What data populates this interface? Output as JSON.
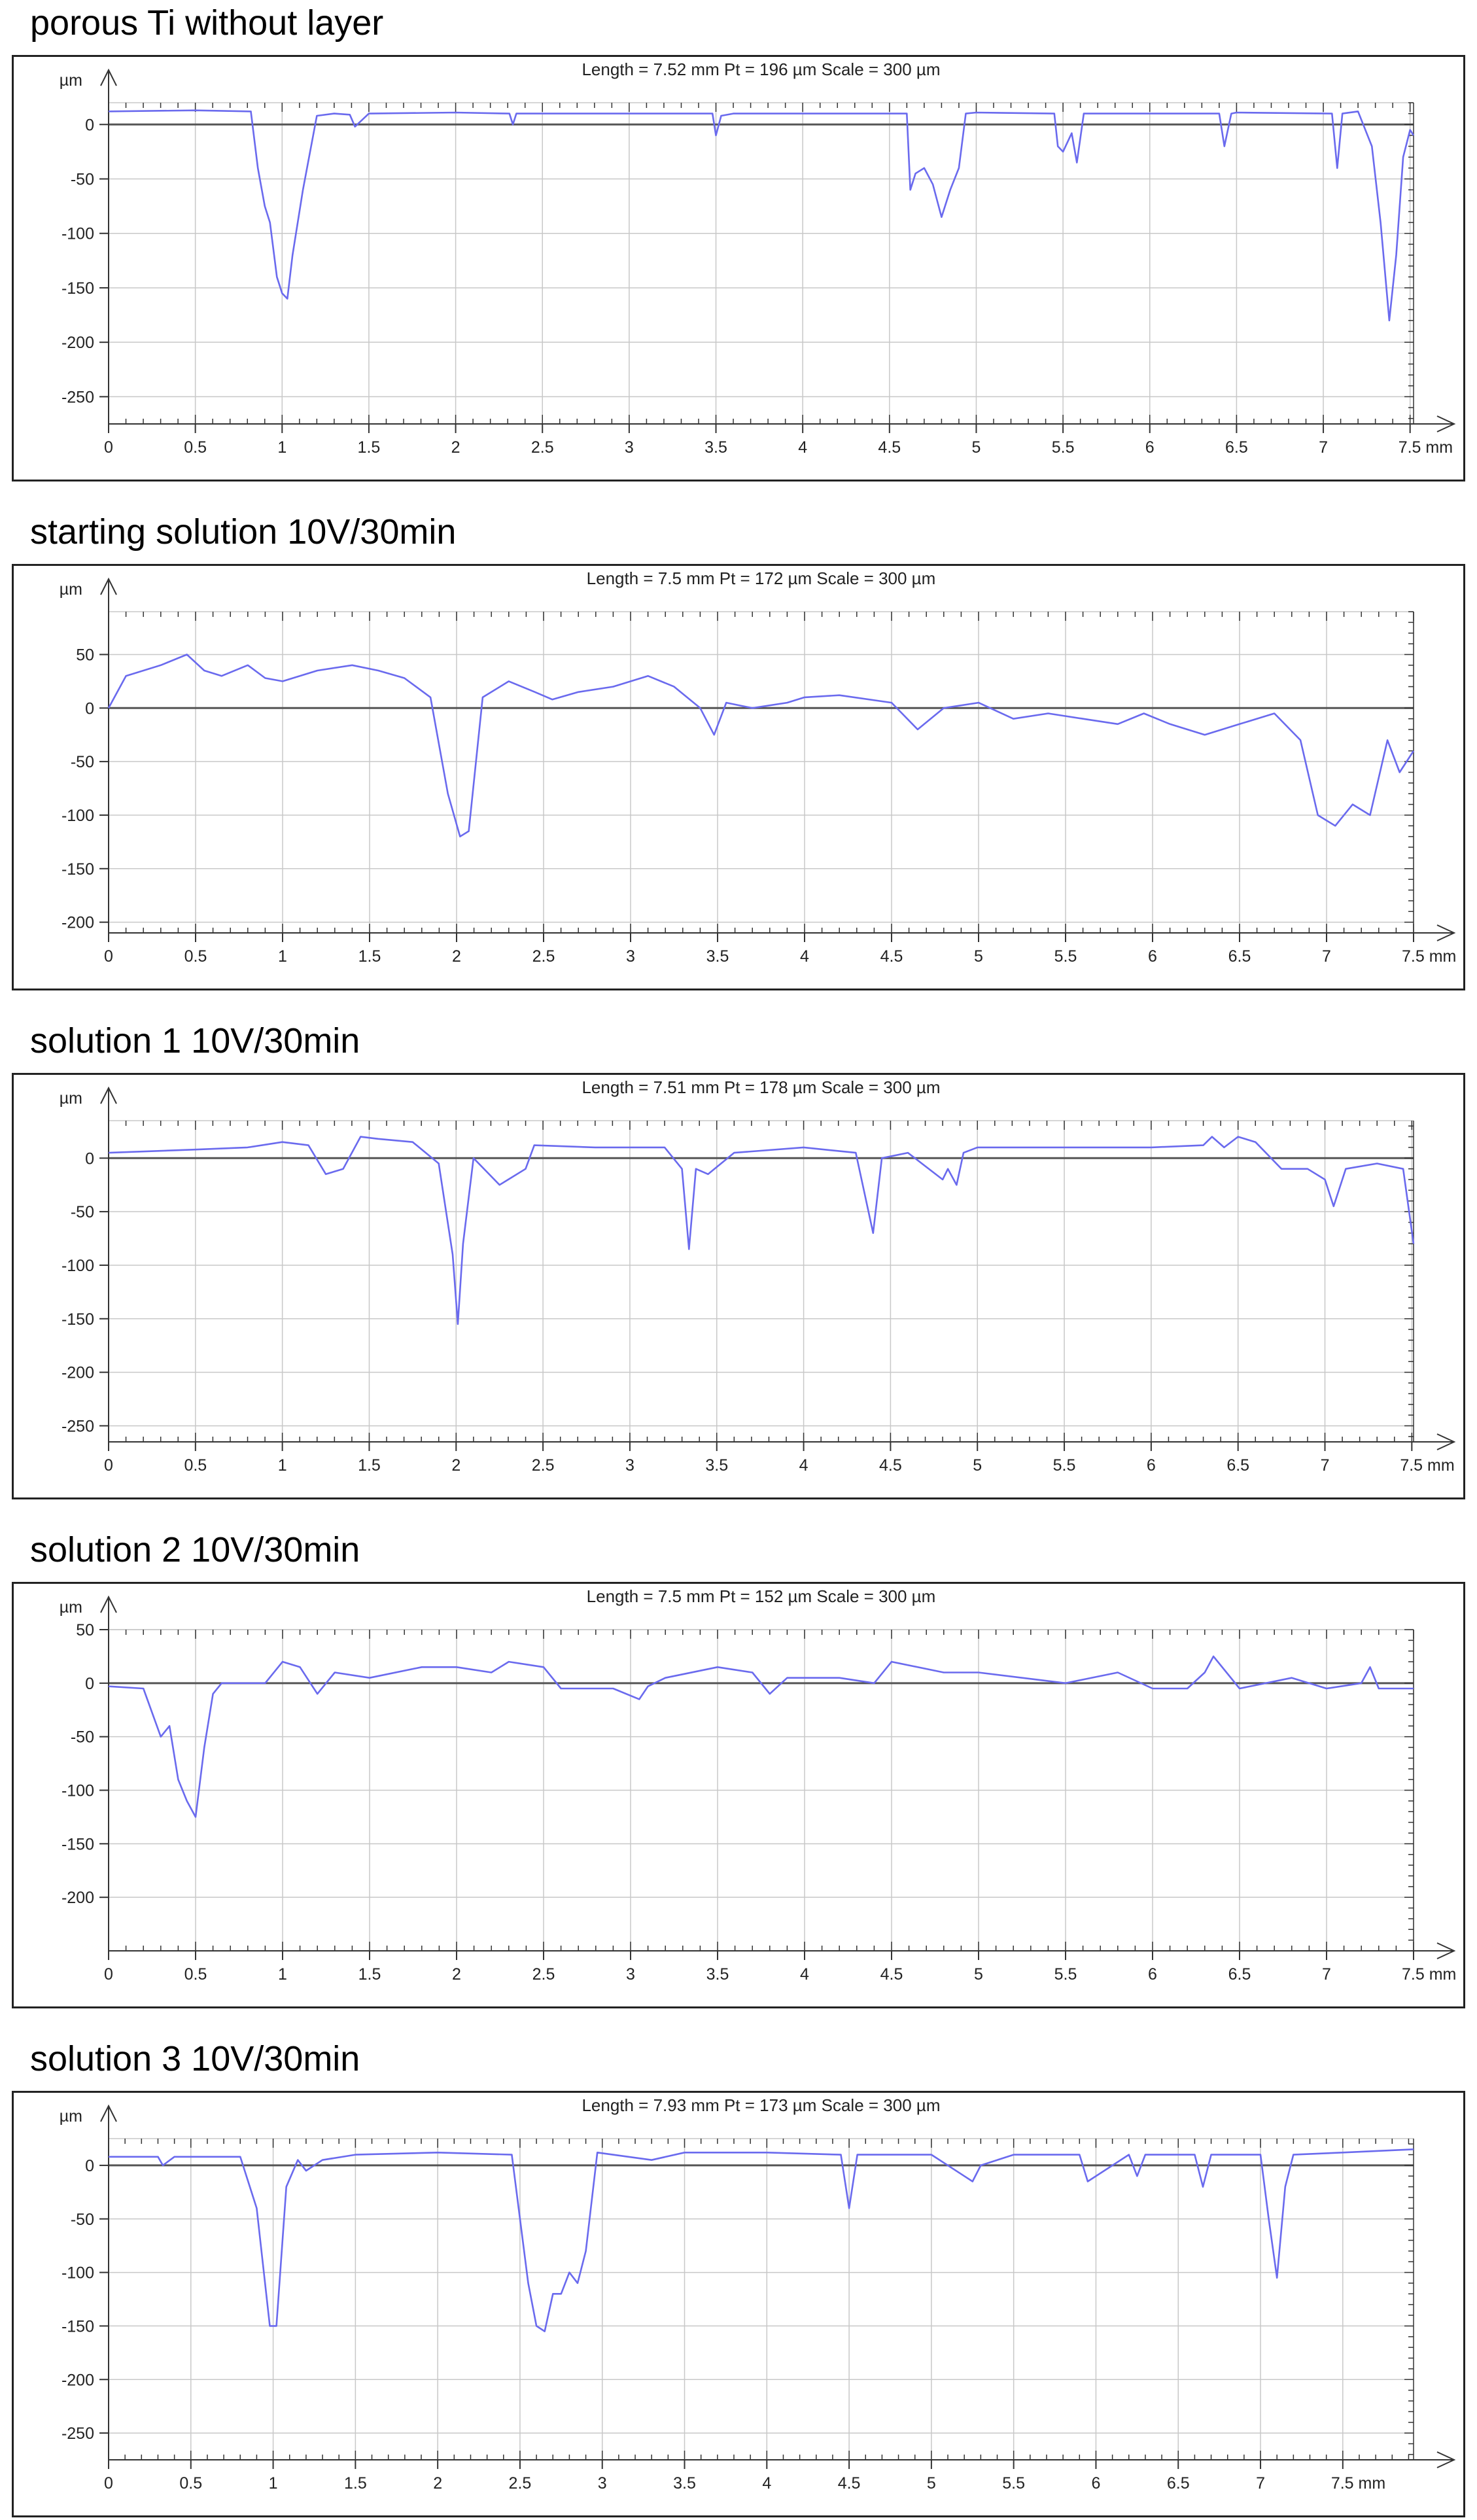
{
  "figure": {
    "x_unit": "mm",
    "y_unit": "µm",
    "line_color": "#6a6aee",
    "grid_color": "#c8c8c8",
    "zero_line_color": "#555555"
  },
  "chart_data": [
    {
      "type": "line",
      "title": "porous Ti without layer",
      "info": "Length = 7.52 mm  Pt = 196 µm  Scale = 300 µm",
      "ylabel": "µm",
      "xlabel": "mm",
      "xlim": [
        0,
        7.52
      ],
      "ylim": [
        -275,
        20
      ],
      "xticks": [
        0,
        0.5,
        1,
        1.5,
        2,
        2.5,
        3,
        3.5,
        4,
        4.5,
        5,
        5.5,
        6,
        6.5,
        7,
        7.5
      ],
      "xtick_labels": [
        "0",
        "0.5",
        "1",
        "1.5",
        "2",
        "2.5",
        "3",
        "3.5",
        "4",
        "4.5",
        "5",
        "5.5",
        "6",
        "6.5",
        "7",
        "7.5 mm"
      ],
      "yticks": [
        0,
        -50,
        -100,
        -150,
        -200,
        -250
      ],
      "ytick_labels": [
        "0",
        "-50",
        "-100",
        "-150",
        "-200",
        "-250"
      ],
      "grid": true,
      "x": [
        0,
        0.5,
        0.82,
        0.86,
        0.9,
        0.93,
        0.97,
        1.0,
        1.03,
        1.06,
        1.12,
        1.2,
        1.3,
        1.39,
        1.42,
        1.5,
        2.0,
        2.31,
        2.33,
        2.35,
        2.5,
        3.48,
        3.5,
        3.53,
        3.6,
        4.6,
        4.62,
        4.65,
        4.7,
        4.75,
        4.8,
        4.85,
        4.9,
        4.94,
        5.0,
        5.45,
        5.47,
        5.5,
        5.55,
        5.58,
        5.62,
        6.4,
        6.43,
        6.47,
        6.5,
        7.05,
        7.08,
        7.11,
        7.2,
        7.28,
        7.33,
        7.38,
        7.42,
        7.46,
        7.5,
        7.52
      ],
      "y": [
        12,
        13,
        12,
        -40,
        -75,
        -90,
        -140,
        -155,
        -160,
        -120,
        -60,
        8,
        10,
        9,
        -2,
        10,
        11,
        10,
        0,
        10,
        10,
        10,
        -10,
        8,
        10,
        10,
        -60,
        -45,
        -40,
        -55,
        -85,
        -60,
        -40,
        10,
        11,
        10,
        -20,
        -25,
        -8,
        -35,
        10,
        10,
        -20,
        10,
        11,
        10,
        -40,
        10,
        12,
        -20,
        -90,
        -180,
        -120,
        -30,
        -5,
        -10
      ]
    },
    {
      "type": "line",
      "title": "starting solution 10V/30min",
      "info": "Length = 7.5 mm  Pt = 172 µm  Scale = 300 µm",
      "ylabel": "µm",
      "xlabel": "mm",
      "xlim": [
        0,
        7.5
      ],
      "ylim": [
        -210,
        90
      ],
      "xticks": [
        0,
        0.5,
        1,
        1.5,
        2,
        2.5,
        3,
        3.5,
        4,
        4.5,
        5,
        5.5,
        6,
        6.5,
        7,
        7.5
      ],
      "xtick_labels": [
        "0",
        "0.5",
        "1",
        "1.5",
        "2",
        "2.5",
        "3",
        "3.5",
        "4",
        "4.5",
        "5",
        "5.5",
        "6",
        "6.5",
        "7",
        "7.5 mm"
      ],
      "yticks": [
        50,
        0,
        -50,
        -100,
        -150,
        -200
      ],
      "ytick_labels": [
        "50",
        "0",
        "-50",
        "-100",
        "-150",
        "-200"
      ],
      "grid": true,
      "x": [
        0,
        0.1,
        0.3,
        0.45,
        0.55,
        0.65,
        0.8,
        0.9,
        1.0,
        1.2,
        1.4,
        1.55,
        1.7,
        1.85,
        1.95,
        2.02,
        2.07,
        2.15,
        2.3,
        2.45,
        2.55,
        2.7,
        2.9,
        3.1,
        3.25,
        3.4,
        3.48,
        3.55,
        3.7,
        3.9,
        4.0,
        4.2,
        4.5,
        4.65,
        4.8,
        5.0,
        5.2,
        5.4,
        5.6,
        5.8,
        5.95,
        6.1,
        6.3,
        6.5,
        6.7,
        6.85,
        6.95,
        7.05,
        7.15,
        7.25,
        7.35,
        7.42,
        7.5
      ],
      "y": [
        0,
        30,
        40,
        50,
        35,
        30,
        40,
        28,
        25,
        35,
        40,
        35,
        28,
        10,
        -80,
        -120,
        -115,
        10,
        25,
        15,
        8,
        15,
        20,
        30,
        20,
        0,
        -25,
        5,
        0,
        5,
        10,
        12,
        5,
        -20,
        0,
        5,
        -10,
        -5,
        -10,
        -15,
        -5,
        -15,
        -25,
        -15,
        -5,
        -30,
        -100,
        -110,
        -90,
        -100,
        -30,
        -60,
        -40
      ]
    },
    {
      "type": "line",
      "title": "solution 1 10V/30min",
      "info": "Length = 7.51 mm  Pt = 178 µm  Scale = 300 µm",
      "ylabel": "µm",
      "xlabel": "mm",
      "xlim": [
        0,
        7.51
      ],
      "ylim": [
        -265,
        35
      ],
      "xticks": [
        0,
        0.5,
        1,
        1.5,
        2,
        2.5,
        3,
        3.5,
        4,
        4.5,
        5,
        5.5,
        6,
        6.5,
        7,
        7.5
      ],
      "xtick_labels": [
        "0",
        "0.5",
        "1",
        "1.5",
        "2",
        "2.5",
        "3",
        "3.5",
        "4",
        "4.5",
        "5",
        "5.5",
        "6",
        "6.5",
        "7",
        "7.5 mm"
      ],
      "yticks": [
        0,
        -50,
        -100,
        -150,
        -200,
        -250
      ],
      "ytick_labels": [
        "0",
        "-50",
        "-100",
        "-150",
        "-200",
        "-250"
      ],
      "grid": true,
      "x": [
        0,
        0.5,
        0.8,
        1.0,
        1.15,
        1.25,
        1.35,
        1.45,
        1.55,
        1.75,
        1.9,
        1.98,
        2.01,
        2.04,
        2.1,
        2.25,
        2.3,
        2.4,
        2.45,
        2.8,
        3.2,
        3.3,
        3.34,
        3.38,
        3.45,
        3.6,
        4.0,
        4.3,
        4.4,
        4.45,
        4.6,
        4.8,
        4.83,
        4.88,
        4.92,
        5.0,
        5.5,
        6.0,
        6.3,
        6.35,
        6.42,
        6.5,
        6.6,
        6.75,
        6.9,
        7.0,
        7.05,
        7.12,
        7.3,
        7.45,
        7.51
      ],
      "y": [
        5,
        8,
        10,
        15,
        12,
        -15,
        -10,
        20,
        18,
        15,
        -5,
        -90,
        -155,
        -80,
        0,
        -25,
        -20,
        -10,
        12,
        10,
        10,
        -10,
        -85,
        -10,
        -15,
        5,
        10,
        5,
        -70,
        0,
        5,
        -20,
        -10,
        -25,
        5,
        10,
        10,
        10,
        12,
        20,
        10,
        20,
        15,
        -10,
        -10,
        -20,
        -45,
        -10,
        -5,
        -10,
        -80
      ]
    },
    {
      "type": "line",
      "title": "solution 2 10V/30min",
      "info": "Length = 7.5 mm  Pt = 152 µm  Scale = 300 µm",
      "ylabel": "µm",
      "xlabel": "mm",
      "xlim": [
        0,
        7.5
      ],
      "ylim": [
        -250,
        50
      ],
      "xticks": [
        0,
        0.5,
        1,
        1.5,
        2,
        2.5,
        3,
        3.5,
        4,
        4.5,
        5,
        5.5,
        6,
        6.5,
        7,
        7.5
      ],
      "xtick_labels": [
        "0",
        "0.5",
        "1",
        "1.5",
        "2",
        "2.5",
        "3",
        "3.5",
        "4",
        "4.5",
        "5",
        "5.5",
        "6",
        "6.5",
        "7",
        "7.5 mm"
      ],
      "yticks": [
        50,
        0,
        -50,
        -100,
        -150,
        -200
      ],
      "ytick_labels": [
        "50",
        "0",
        "-50",
        "-100",
        "-150",
        "-200"
      ],
      "grid": true,
      "x": [
        0,
        0.2,
        0.3,
        0.35,
        0.4,
        0.45,
        0.5,
        0.55,
        0.6,
        0.65,
        0.8,
        0.9,
        1.0,
        1.1,
        1.2,
        1.3,
        1.5,
        1.8,
        2.0,
        2.2,
        2.3,
        2.5,
        2.6,
        2.9,
        3.05,
        3.1,
        3.2,
        3.5,
        3.7,
        3.8,
        3.9,
        4.2,
        4.4,
        4.5,
        4.8,
        5.0,
        5.5,
        5.8,
        6.0,
        6.2,
        6.3,
        6.35,
        6.5,
        6.8,
        7.0,
        7.2,
        7.25,
        7.3,
        7.5
      ],
      "y": [
        -3,
        -5,
        -50,
        -40,
        -90,
        -110,
        -125,
        -60,
        -10,
        0,
        0,
        0,
        20,
        15,
        -10,
        10,
        5,
        15,
        15,
        10,
        20,
        15,
        -5,
        -5,
        -15,
        -3,
        5,
        15,
        10,
        -10,
        5,
        5,
        0,
        20,
        10,
        10,
        0,
        10,
        -5,
        -5,
        10,
        25,
        -5,
        5,
        -5,
        0,
        15,
        -5,
        -5
      ]
    },
    {
      "type": "line",
      "title": "solution 3 10V/30min",
      "info": "Length = 7.93 mm  Pt = 173 µm  Scale = 300 µm",
      "ylabel": "µm",
      "xlabel": "mm",
      "xlim": [
        0,
        7.93
      ],
      "ylim": [
        -275,
        25
      ],
      "xticks": [
        0,
        0.5,
        1,
        1.5,
        2,
        2.5,
        3,
        3.5,
        4,
        4.5,
        5,
        5.5,
        6,
        6.5,
        7,
        7.5
      ],
      "xtick_labels": [
        "0",
        "0.5",
        "1",
        "1.5",
        "2",
        "2.5",
        "3",
        "3.5",
        "4",
        "4.5",
        "5",
        "5.5",
        "6",
        "6.5",
        "7",
        "7.5 mm"
      ],
      "yticks": [
        0,
        -50,
        -100,
        -150,
        -200,
        -250
      ],
      "ytick_labels": [
        "0",
        "-50",
        "-100",
        "-150",
        "-200",
        "-250"
      ],
      "grid": true,
      "x": [
        0,
        0.3,
        0.33,
        0.4,
        0.8,
        0.9,
        0.98,
        1.02,
        1.08,
        1.15,
        1.2,
        1.3,
        1.5,
        2.0,
        2.45,
        2.55,
        2.6,
        2.65,
        2.7,
        2.75,
        2.8,
        2.85,
        2.9,
        2.97,
        3.3,
        3.5,
        4.0,
        4.45,
        4.5,
        4.55,
        5.0,
        5.2,
        5.25,
        5.3,
        5.5,
        5.9,
        5.95,
        6.2,
        6.25,
        6.3,
        6.6,
        6.65,
        6.7,
        7.0,
        7.05,
        7.1,
        7.15,
        7.2,
        7.5,
        7.93
      ],
      "y": [
        8,
        8,
        0,
        8,
        8,
        -40,
        -150,
        -150,
        -20,
        5,
        -5,
        5,
        10,
        12,
        10,
        -110,
        -150,
        -155,
        -120,
        -120,
        -100,
        -110,
        -80,
        12,
        5,
        12,
        12,
        10,
        -40,
        10,
        10,
        -10,
        -15,
        0,
        10,
        10,
        -15,
        10,
        -10,
        10,
        10,
        -20,
        10,
        10,
        -50,
        -105,
        -20,
        10,
        12,
        15
      ]
    }
  ]
}
